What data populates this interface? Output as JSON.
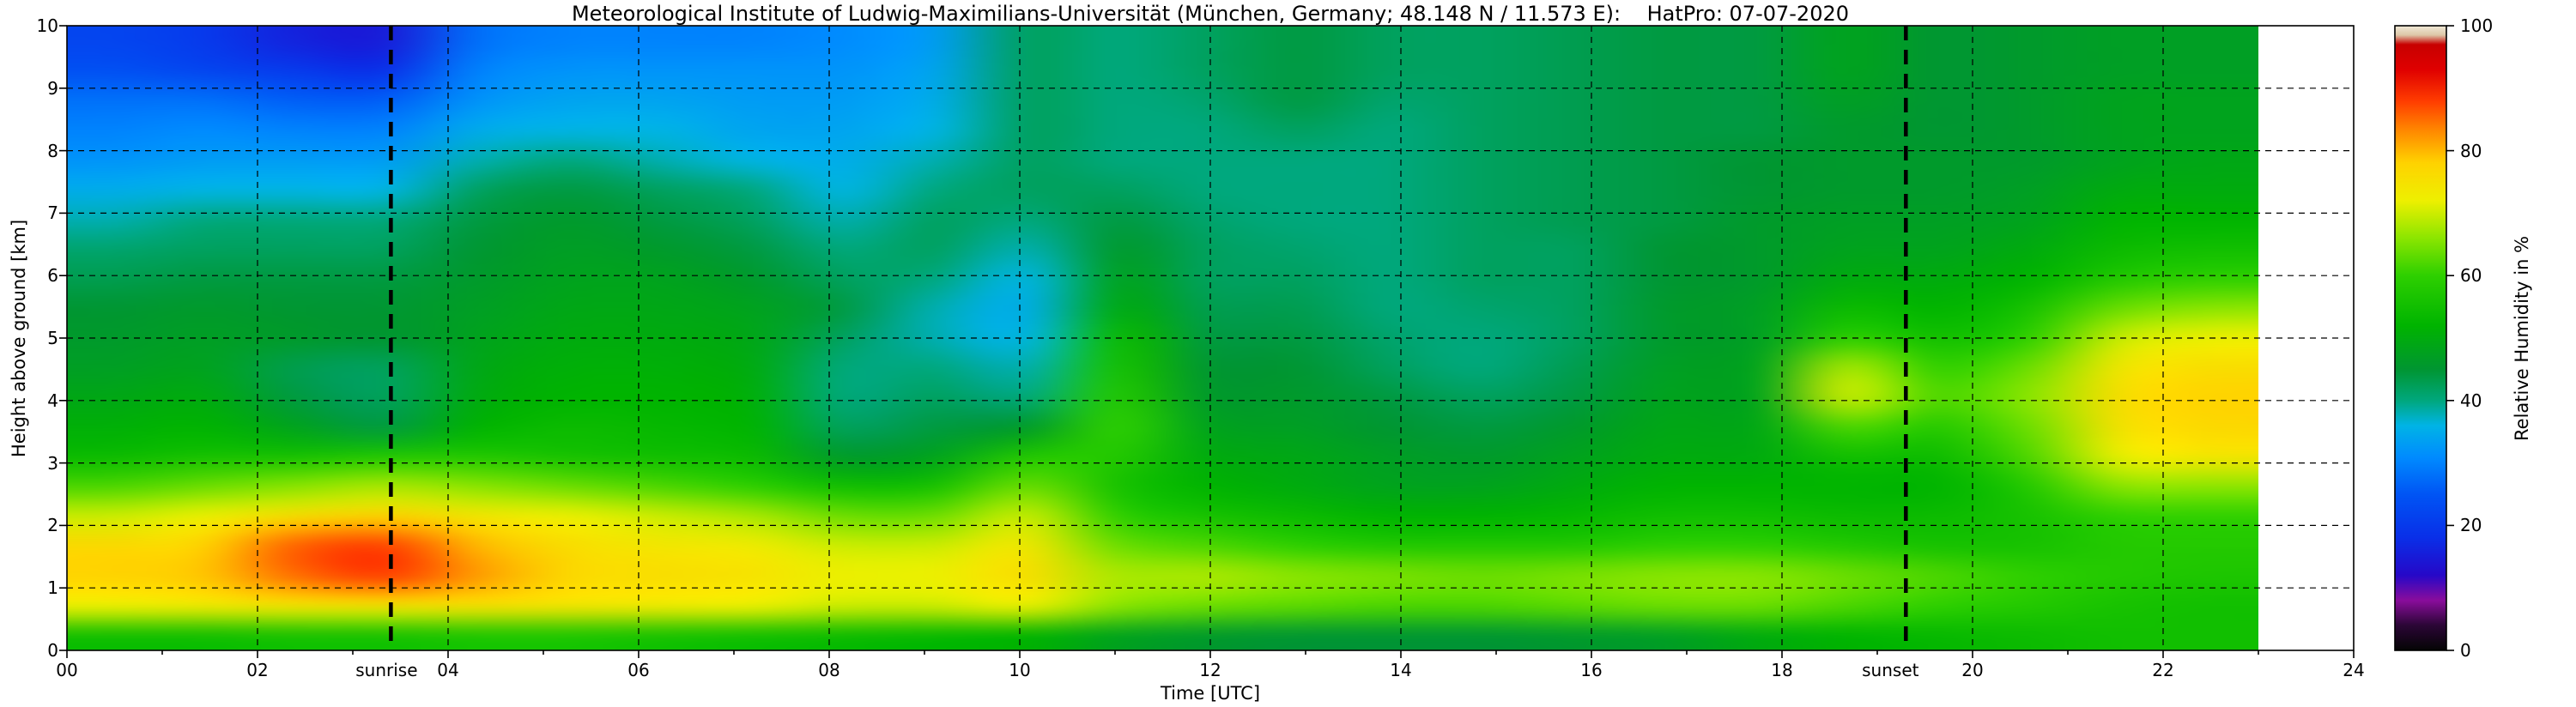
{
  "title": "Meteorological Institute of Ludwig-Maximilians-Universität (München, Germany; 48.148 N / 11.573 E):    HatPro: 07-07-2020",
  "axes": {
    "xlabel": "Time [UTC]",
    "ylabel": "Height above ground [km]",
    "xlim": [
      0,
      24
    ],
    "ylim": [
      0,
      10
    ],
    "x_tick_labels": [
      "00",
      "02",
      "04",
      "06",
      "08",
      "10",
      "12",
      "14",
      "16",
      "18",
      "20",
      "22",
      "24"
    ],
    "y_tick_labels": [
      "0",
      "1",
      "2",
      "3",
      "4",
      "5",
      "6",
      "7",
      "8",
      "9",
      "10"
    ],
    "grid": "dashed black, horizontal every 1 km, vertical every 2 h"
  },
  "colorbar": {
    "label": "Relative Humidity in %",
    "tick_labels": [
      "0",
      "20",
      "40",
      "60",
      "80",
      "100"
    ],
    "min": 0,
    "max": 100
  },
  "annotations": {
    "sunrise": {
      "label": "sunrise",
      "time_utc": 3.4,
      "style": "thick black dashed vertical line"
    },
    "sunset": {
      "label": "sunset",
      "time_utc": 19.3,
      "style": "thick black dashed vertical line"
    }
  },
  "chart_data": {
    "type": "heatmap",
    "title": "HatPro microwave radiometer relative humidity profile, 07-07-2020",
    "x": [
      0,
      1,
      2,
      3,
      4,
      5,
      6,
      7,
      8,
      9,
      10,
      11,
      12,
      13,
      14,
      15,
      16,
      17,
      18,
      19,
      20,
      21,
      22,
      23
    ],
    "x_units": "hours UTC",
    "data_end_hour": 23,
    "y": [
      0,
      0.5,
      1,
      1.5,
      2,
      2.5,
      3,
      3.5,
      4,
      4.5,
      5,
      5.5,
      6,
      6.5,
      7,
      7.5,
      8,
      8.5,
      9,
      9.5,
      10
    ],
    "y_units": "km above ground",
    "value_range": [
      0,
      100
    ],
    "value_units": "percent relative humidity",
    "values_percent_rh": [
      [
        55,
        55,
        56,
        56,
        57,
        57,
        56,
        55,
        54,
        53,
        52,
        48,
        46,
        45,
        45,
        45,
        46,
        47,
        50,
        52,
        53,
        54,
        55,
        55
      ],
      [
        72,
        73,
        74,
        74,
        75,
        74,
        73,
        72,
        70,
        70,
        72,
        66,
        64,
        63,
        62,
        62,
        63,
        64,
        64,
        62,
        60,
        58,
        56,
        55
      ],
      [
        78,
        79,
        85,
        88,
        82,
        77,
        76,
        75,
        72,
        72,
        76,
        68,
        68,
        66,
        65,
        64,
        65,
        66,
        66,
        64,
        62,
        60,
        58,
        57
      ],
      [
        77,
        78,
        86,
        88,
        80,
        76,
        74,
        73,
        70,
        70,
        74,
        64,
        62,
        60,
        58,
        58,
        58,
        60,
        60,
        58,
        56,
        56,
        58,
        58
      ],
      [
        70,
        72,
        76,
        78,
        74,
        72,
        70,
        68,
        64,
        64,
        70,
        60,
        56,
        54,
        52,
        52,
        53,
        55,
        55,
        54,
        54,
        56,
        60,
        60
      ],
      [
        62,
        64,
        66,
        68,
        66,
        64,
        62,
        60,
        55,
        56,
        64,
        56,
        52,
        50,
        48,
        48,
        50,
        52,
        52,
        52,
        52,
        58,
        66,
        66
      ],
      [
        54,
        56,
        56,
        58,
        58,
        56,
        55,
        54,
        46,
        48,
        58,
        58,
        50,
        49,
        47,
        46,
        48,
        50,
        50,
        55,
        54,
        62,
        72,
        74
      ],
      [
        51,
        52,
        48,
        44,
        52,
        54,
        53,
        52,
        42,
        44,
        46,
        60,
        48,
        47,
        45,
        44,
        46,
        49,
        49,
        62,
        58,
        64,
        75,
        77
      ],
      [
        49,
        50,
        44,
        42,
        50,
        52,
        52,
        51,
        40,
        42,
        40,
        58,
        46,
        46,
        44,
        42,
        44,
        48,
        48,
        70,
        62,
        66,
        76,
        78
      ],
      [
        47,
        48,
        43,
        42,
        49,
        51,
        51,
        50,
        40,
        40,
        38,
        56,
        45,
        45,
        42,
        40,
        43,
        47,
        48,
        68,
        60,
        64,
        74,
        76
      ],
      [
        46,
        47,
        46,
        45,
        48,
        50,
        50,
        49,
        42,
        38,
        36,
        54,
        44,
        44,
        41,
        40,
        42,
        46,
        47,
        60,
        55,
        60,
        70,
        72
      ],
      [
        45,
        46,
        45,
        45,
        47,
        49,
        49,
        48,
        44,
        38,
        35,
        50,
        43,
        43,
        40,
        41,
        42,
        46,
        47,
        54,
        52,
        56,
        64,
        66
      ],
      [
        43,
        44,
        44,
        44,
        46,
        48,
        48,
        46,
        42,
        40,
        36,
        48,
        42,
        42,
        40,
        42,
        42,
        45,
        46,
        50,
        50,
        52,
        58,
        60
      ],
      [
        41,
        42,
        42,
        42,
        45,
        47,
        46,
        44,
        40,
        42,
        38,
        46,
        42,
        41,
        40,
        42,
        42,
        45,
        46,
        48,
        48,
        50,
        54,
        55
      ],
      [
        38,
        40,
        40,
        40,
        44,
        46,
        44,
        42,
        38,
        42,
        40,
        44,
        41,
        40,
        40,
        42,
        43,
        44,
        46,
        47,
        47,
        48,
        52,
        52
      ],
      [
        35,
        36,
        36,
        36,
        42,
        44,
        42,
        40,
        36,
        40,
        42,
        42,
        40,
        40,
        40,
        42,
        43,
        44,
        45,
        46,
        46,
        47,
        50,
        50
      ],
      [
        32,
        33,
        33,
        33,
        38,
        40,
        38,
        36,
        35,
        38,
        42,
        40,
        40,
        40,
        40,
        42,
        43,
        44,
        45,
        46,
        46,
        46,
        48,
        49
      ],
      [
        30,
        31,
        30,
        30,
        35,
        36,
        36,
        34,
        34,
        36,
        42,
        40,
        40,
        42,
        40,
        42,
        43,
        44,
        44,
        46,
        45,
        46,
        48,
        48
      ],
      [
        28,
        28,
        26,
        26,
        32,
        34,
        34,
        33,
        33,
        35,
        42,
        40,
        41,
        44,
        41,
        42,
        43,
        44,
        44,
        47,
        45,
        46,
        48,
        48
      ],
      [
        24,
        22,
        20,
        18,
        30,
        32,
        32,
        32,
        32,
        34,
        42,
        40,
        42,
        44,
        42,
        42,
        43,
        44,
        44,
        48,
        45,
        46,
        47,
        47
      ],
      [
        22,
        20,
        16,
        15,
        28,
        30,
        30,
        30,
        31,
        33,
        42,
        40,
        42,
        44,
        42,
        42,
        43,
        44,
        44,
        48,
        45,
        46,
        47,
        47
      ]
    ],
    "colormap_stops": [
      [
        0,
        "#050505"
      ],
      [
        4,
        "#2b0636"
      ],
      [
        8,
        "#8a0d9c"
      ],
      [
        12,
        "#2708c8"
      ],
      [
        18,
        "#0a2fe8"
      ],
      [
        25,
        "#0055f5"
      ],
      [
        31,
        "#008cff"
      ],
      [
        36,
        "#00b4e6"
      ],
      [
        40,
        "#00a87d"
      ],
      [
        45,
        "#009632"
      ],
      [
        52,
        "#00b400"
      ],
      [
        60,
        "#2ed000"
      ],
      [
        66,
        "#8ce600"
      ],
      [
        72,
        "#eef000"
      ],
      [
        78,
        "#ffd300"
      ],
      [
        83,
        "#ff8c00"
      ],
      [
        88,
        "#ff3c00"
      ],
      [
        93,
        "#e00000"
      ],
      [
        97,
        "#c80000"
      ],
      [
        98.5,
        "#ddc8a8"
      ],
      [
        100,
        "#f2ead8"
      ]
    ]
  }
}
